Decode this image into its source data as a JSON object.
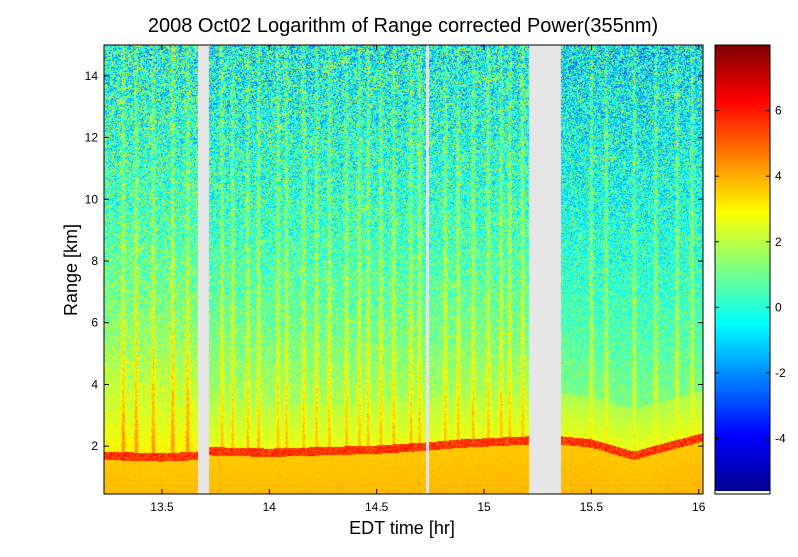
{
  "chart_data": {
    "type": "heatmap",
    "title": "2008 Oct02  Logarithm of Range corrected Power(355nm)",
    "xlabel": "EDT time [hr]",
    "ylabel": "Range [km]",
    "xlim": [
      13.23,
      16.02
    ],
    "ylim": [
      0.45,
      15.0
    ],
    "xticks": [
      13.5,
      14,
      14.5,
      15,
      15.5,
      16
    ],
    "xtick_labels": [
      "13.5",
      "14",
      "14.5",
      "15",
      "15.5",
      "16"
    ],
    "yticks": [
      2,
      4,
      6,
      8,
      10,
      12,
      14
    ],
    "ytick_labels": [
      "2",
      "4",
      "6",
      "8",
      "10",
      "12",
      "14"
    ],
    "colorbar": {
      "range": [
        -5.6,
        8.0
      ],
      "ticks": [
        -4,
        -2,
        0,
        2,
        4,
        6
      ],
      "tick_labels": [
        "-4",
        "-2",
        "0",
        "2",
        "4",
        "6"
      ]
    },
    "data_gaps_hr": [
      [
        13.67,
        13.72
      ],
      [
        14.73,
        14.745
      ],
      [
        15.21,
        15.36
      ]
    ],
    "boundary_layer_top_km": {
      "x": [
        13.23,
        13.5,
        13.67,
        13.72,
        14.0,
        14.5,
        14.73,
        14.9,
        15.21,
        15.36,
        15.5,
        15.7,
        15.8,
        16.02
      ],
      "y": [
        1.7,
        1.65,
        1.7,
        1.85,
        1.8,
        1.9,
        2.0,
        2.1,
        2.2,
        2.2,
        2.1,
        1.7,
        1.9,
        2.3
      ]
    },
    "cloud_free_plume_times_hr": [
      13.32,
      13.38,
      13.46,
      13.55,
      13.62,
      13.78,
      13.83,
      13.9,
      13.95,
      14.04,
      14.08,
      14.16,
      14.22,
      14.28,
      14.36,
      14.42,
      14.46,
      14.52,
      14.58,
      14.66,
      14.7,
      14.82,
      14.88,
      14.95,
      15.02,
      15.08,
      15.12,
      15.18,
      15.5,
      15.57,
      15.7,
      15.8,
      15.9,
      15.97
    ]
  }
}
